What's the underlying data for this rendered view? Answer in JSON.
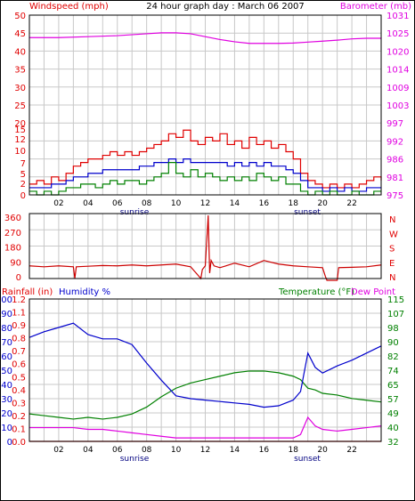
{
  "top": {
    "title": "24 hour graph day : March 06 2007",
    "left_label": "Windspeed (mph)",
    "right_label": "Barometer (mb)"
  },
  "mid": {
    "direction_letters": [
      "N",
      "W",
      "S",
      "E",
      "N"
    ]
  },
  "bottom": {
    "rain_label": "Rainfall (in)",
    "hum_label": "Humidity %",
    "temp_label": "Temperature (°F)",
    "dew_label": "Dew Point"
  },
  "markers": {
    "sunrise": "sunrise",
    "sunset": "sunset"
  },
  "colors": {
    "wind_gust": "#e00000",
    "wind_avg": "#0000cc",
    "wind_low": "#008000",
    "barometer": "#e000e0",
    "direction": "#cc0000",
    "humidity": "#0000cc",
    "temperature": "#008000",
    "dew_point": "#e000e0",
    "rainfall": "#e00000",
    "grid": "#c8c8c8"
  },
  "chart_data": [
    {
      "type": "line",
      "title": "24 hour graph day : March 06 2007",
      "ylabel": "Windspeed (mph)",
      "y2label": "Barometer (mb)",
      "xlim": [
        0,
        24
      ],
      "x_ticks": [
        "02",
        "04",
        "06",
        "08",
        "10",
        "12",
        "14",
        "16",
        "18",
        "20",
        "22"
      ],
      "y_ticks": [
        "0",
        "2",
        "5",
        "7",
        "10",
        "12",
        "15",
        "20",
        "25",
        "30",
        "35",
        "40",
        "45",
        "50"
      ],
      "y2_ticks": [
        "975",
        "981",
        "986",
        "992",
        "997",
        "1003",
        "1009",
        "1014",
        "1020",
        "1025",
        "1031"
      ],
      "series": [
        {
          "axis": "left",
          "x": [
            0,
            0.5,
            1,
            1.5,
            2,
            2.5,
            3,
            3.5,
            4,
            4.5,
            5,
            5.5,
            6,
            6.5,
            7,
            7.5,
            8,
            8.5,
            9,
            9.5,
            10,
            10.5,
            11,
            11.5,
            12,
            12.5,
            13,
            13.5,
            14,
            14.5,
            15,
            15.5,
            16,
            16.5,
            17,
            17.5,
            18,
            18.5,
            19,
            19.5,
            20,
            20.5,
            21,
            21.5,
            22,
            22.5,
            23,
            23.5,
            24
          ],
          "y": [
            3,
            4,
            3,
            5,
            4,
            6,
            8,
            9,
            10,
            10,
            11,
            12,
            11,
            12,
            11,
            12,
            13,
            14,
            15,
            17,
            16,
            18,
            15,
            14,
            16,
            15,
            17,
            14,
            15,
            13,
            16,
            14,
            15,
            13,
            14,
            12,
            10,
            6,
            4,
            3,
            2,
            3,
            2,
            3,
            2,
            3,
            4,
            5,
            4
          ]
        },
        {
          "axis": "left",
          "x": [
            0,
            0.5,
            1,
            1.5,
            2,
            2.5,
            3,
            3.5,
            4,
            4.5,
            5,
            5.5,
            6,
            6.5,
            7,
            7.5,
            8,
            8.5,
            9,
            9.5,
            10,
            10.5,
            11,
            11.5,
            12,
            12.5,
            13,
            13.5,
            14,
            14.5,
            15,
            15.5,
            16,
            16.5,
            17,
            17.5,
            18,
            18.5,
            19,
            19.5,
            20,
            20.5,
            21,
            21.5,
            22,
            22.5,
            23,
            23.5,
            24
          ],
          "y": [
            2,
            2,
            2,
            3,
            3,
            4,
            5,
            5,
            6,
            6,
            7,
            7,
            7,
            7,
            7,
            8,
            8,
            9,
            9,
            10,
            9,
            10,
            9,
            9,
            9,
            9,
            9,
            8,
            9,
            8,
            9,
            8,
            9,
            8,
            8,
            7,
            6,
            4,
            2,
            2,
            1,
            2,
            1,
            2,
            1,
            1,
            2,
            2,
            2
          ]
        },
        {
          "axis": "left",
          "x": [
            0,
            0.5,
            1,
            1.5,
            2,
            2.5,
            3,
            3.5,
            4,
            4.5,
            5,
            5.5,
            6,
            6.5,
            7,
            7.5,
            8,
            8.5,
            9,
            9.5,
            10,
            10.5,
            11,
            11.5,
            12,
            12.5,
            13,
            13.5,
            14,
            14.5,
            15,
            15.5,
            16,
            16.5,
            17,
            17.5,
            18,
            18.5,
            19,
            19.5,
            20,
            20.5,
            21,
            21.5,
            22,
            22.5,
            23,
            23.5,
            24
          ],
          "y": [
            1,
            0,
            1,
            0,
            1,
            2,
            2,
            3,
            3,
            2,
            3,
            4,
            3,
            4,
            4,
            3,
            4,
            5,
            6,
            9,
            6,
            5,
            7,
            5,
            6,
            5,
            4,
            5,
            4,
            5,
            4,
            6,
            5,
            4,
            5,
            3,
            3,
            1,
            0,
            1,
            0,
            1,
            0,
            0,
            1,
            0,
            0,
            1,
            1
          ]
        },
        {
          "axis": "right",
          "x": [
            0,
            2,
            4,
            6,
            8,
            9,
            10,
            11,
            12,
            13,
            14,
            15,
            16,
            17,
            18,
            19,
            20,
            21,
            22,
            23,
            24
          ],
          "y": [
            1024,
            1024,
            1024.3,
            1024.6,
            1025.2,
            1025.5,
            1025.5,
            1025.2,
            1024.3,
            1023.4,
            1022.7,
            1022.2,
            1022.2,
            1022.2,
            1022.3,
            1022.6,
            1022.9,
            1023.2,
            1023.6,
            1023.8,
            1023.8
          ]
        }
      ]
    },
    {
      "type": "line",
      "ylabel": "Wind direction",
      "xlim": [
        0,
        24
      ],
      "ylim": [
        0,
        360
      ],
      "y_ticks": [
        "0",
        "90",
        "180",
        "270",
        "360"
      ],
      "series": [
        {
          "x": [
            0,
            1,
            2,
            3,
            3.1,
            3.2,
            4,
            5,
            6,
            7,
            8,
            9,
            10,
            11,
            11.7,
            11.8,
            12,
            12.2,
            12.3,
            12.4,
            12.6,
            13,
            14,
            15,
            16,
            17,
            18,
            19,
            20,
            20.2,
            20.3,
            21,
            21.1,
            22,
            23,
            24
          ],
          "y": [
            80,
            75,
            80,
            75,
            10,
            75,
            78,
            82,
            80,
            85,
            80,
            85,
            90,
            75,
            10,
            60,
            80,
            360,
            40,
            110,
            80,
            70,
            95,
            75,
            110,
            90,
            80,
            75,
            70,
            20,
            0,
            0,
            70,
            72,
            75,
            85
          ]
        }
      ]
    },
    {
      "type": "line",
      "ylabel": "Rainfall (in) / Humidity %",
      "y2label": "Temperature (°F) / Dew Point",
      "xlim": [
        0,
        24
      ],
      "x_ticks": [
        "02",
        "04",
        "06",
        "08",
        "10",
        "12",
        "14",
        "16",
        "18",
        "20",
        "22"
      ],
      "y_ticks_hum": [
        "0",
        "10",
        "20",
        "30",
        "40",
        "50",
        "60",
        "70",
        "80",
        "90",
        "100"
      ],
      "y_ticks_rain": [
        "0.0",
        "0.1",
        "0.2",
        "0.3",
        "0.4",
        "0.5",
        "0.6",
        "0.7",
        "0.8",
        "0.9",
        "1.1",
        "1.2"
      ],
      "y2_ticks": [
        "32",
        "40",
        "49",
        "57",
        "65",
        "74",
        "82",
        "90",
        "98",
        "107",
        "115"
      ],
      "series": [
        {
          "axis": "humidity",
          "x": [
            0,
            1,
            2,
            3,
            4,
            5,
            6,
            7,
            8,
            9,
            10,
            11,
            12,
            13,
            14,
            15,
            16,
            17,
            18,
            18.5,
            19,
            19.5,
            20,
            21,
            22,
            23,
            24
          ],
          "y": [
            73,
            77,
            80,
            83,
            75,
            72,
            72,
            68,
            55,
            43,
            32,
            30,
            29,
            28,
            27,
            26,
            24,
            25,
            29,
            35,
            62,
            52,
            48,
            53,
            57,
            62,
            67
          ]
        },
        {
          "axis": "temperature",
          "x": [
            0,
            1,
            2,
            3,
            4,
            5,
            6,
            7,
            8,
            9,
            10,
            11,
            12,
            13,
            14,
            15,
            16,
            17,
            18,
            18.5,
            19,
            19.5,
            20,
            21,
            22,
            23,
            24
          ],
          "y": [
            48,
            47,
            46,
            45,
            46,
            45,
            46,
            48,
            52,
            58,
            63,
            66,
            68,
            70,
            72,
            73,
            73,
            72,
            70,
            68,
            63,
            62,
            60,
            59,
            57,
            56,
            55
          ]
        },
        {
          "axis": "temperature",
          "x": [
            0,
            1,
            2,
            3,
            4,
            5,
            6,
            7,
            8,
            9,
            10,
            11,
            12,
            13,
            14,
            15,
            16,
            17,
            18,
            18.5,
            19,
            19.5,
            20,
            21,
            22,
            23,
            24
          ],
          "y": [
            40,
            40,
            40,
            40,
            39,
            39,
            38,
            37,
            36,
            35,
            34,
            34,
            34,
            34,
            34,
            34,
            34,
            34,
            34,
            36,
            46,
            41,
            39,
            38,
            39,
            40,
            41
          ]
        },
        {
          "axis": "rainfall",
          "x": [
            0,
            24
          ],
          "y": [
            0,
            0
          ]
        }
      ]
    }
  ]
}
